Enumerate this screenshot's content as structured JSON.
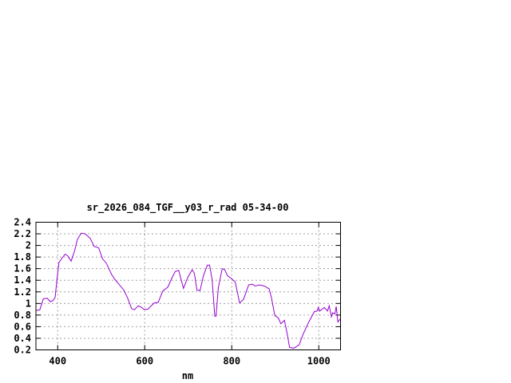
{
  "chart_data": {
    "type": "line",
    "title": "sr_2026_084_TGF__y03_r_rad 05-34-00",
    "xlabel": "nm",
    "ylabel": "",
    "xlim": [
      350,
      1050
    ],
    "ylim": [
      0.2,
      2.4
    ],
    "xticks": [
      400,
      600,
      800,
      1000
    ],
    "xtick_labels": [
      "400",
      "600",
      "800",
      "1000"
    ],
    "yticks": [
      0.2,
      0.4,
      0.6,
      0.8,
      1,
      1.2,
      1.4,
      1.6,
      1.8,
      2,
      2.2,
      2.4
    ],
    "ytick_labels": [
      "0.2",
      "0.4",
      "0.6",
      "0.8",
      "1",
      "1.2",
      "1.4",
      "1.6",
      "1.8",
      "2",
      "2.2",
      "2.4"
    ],
    "grid": true,
    "legend": "none",
    "line_color": "#9400d3",
    "series": [
      {
        "x": [
          350,
          352,
          359,
          367,
          376,
          383,
          389,
          394,
          399,
          403,
          417,
          423,
          431,
          439,
          445,
          454,
          463,
          475,
          484,
          494,
          503,
          512,
          524,
          531,
          552,
          561,
          570,
          576,
          585,
          591,
          598,
          607,
          622,
          631,
          642,
          653,
          662,
          670,
          678,
          689,
          699,
          709,
          714,
          720,
          727,
          735,
          744,
          749,
          755,
          761,
          764,
          769,
          778,
          784,
          790,
          799,
          808,
          818,
          827,
          839,
          848,
          854,
          863,
          875,
          886,
          891,
          899,
          907,
          913,
          921,
          927,
          933,
          943,
          955,
          964,
          977,
          990,
          996,
          999,
          1002,
          1013,
          1020,
          1024,
          1029,
          1032,
          1037,
          1040,
          1044,
          1049,
          1050
        ],
        "y": [
          0.88,
          0.88,
          0.89,
          1.08,
          1.09,
          1.03,
          1.05,
          1.1,
          1.46,
          1.71,
          1.85,
          1.82,
          1.73,
          1.91,
          2.1,
          2.21,
          2.2,
          2.12,
          1.98,
          1.96,
          1.77,
          1.69,
          1.5,
          1.42,
          1.23,
          1.09,
          0.91,
          0.89,
          0.96,
          0.94,
          0.9,
          0.9,
          1.01,
          1.02,
          1.22,
          1.28,
          1.43,
          1.55,
          1.57,
          1.26,
          1.45,
          1.58,
          1.52,
          1.23,
          1.22,
          1.48,
          1.66,
          1.66,
          1.41,
          0.78,
          0.78,
          1.27,
          1.6,
          1.58,
          1.48,
          1.43,
          1.37,
          1.01,
          1.07,
          1.32,
          1.33,
          1.3,
          1.32,
          1.3,
          1.25,
          1.11,
          0.79,
          0.75,
          0.65,
          0.71,
          0.49,
          0.24,
          0.23,
          0.29,
          0.47,
          0.68,
          0.86,
          0.87,
          0.93,
          0.87,
          0.93,
          0.87,
          0.96,
          0.77,
          0.84,
          0.82,
          0.95,
          0.68,
          0.73,
          0.73
        ]
      }
    ]
  }
}
